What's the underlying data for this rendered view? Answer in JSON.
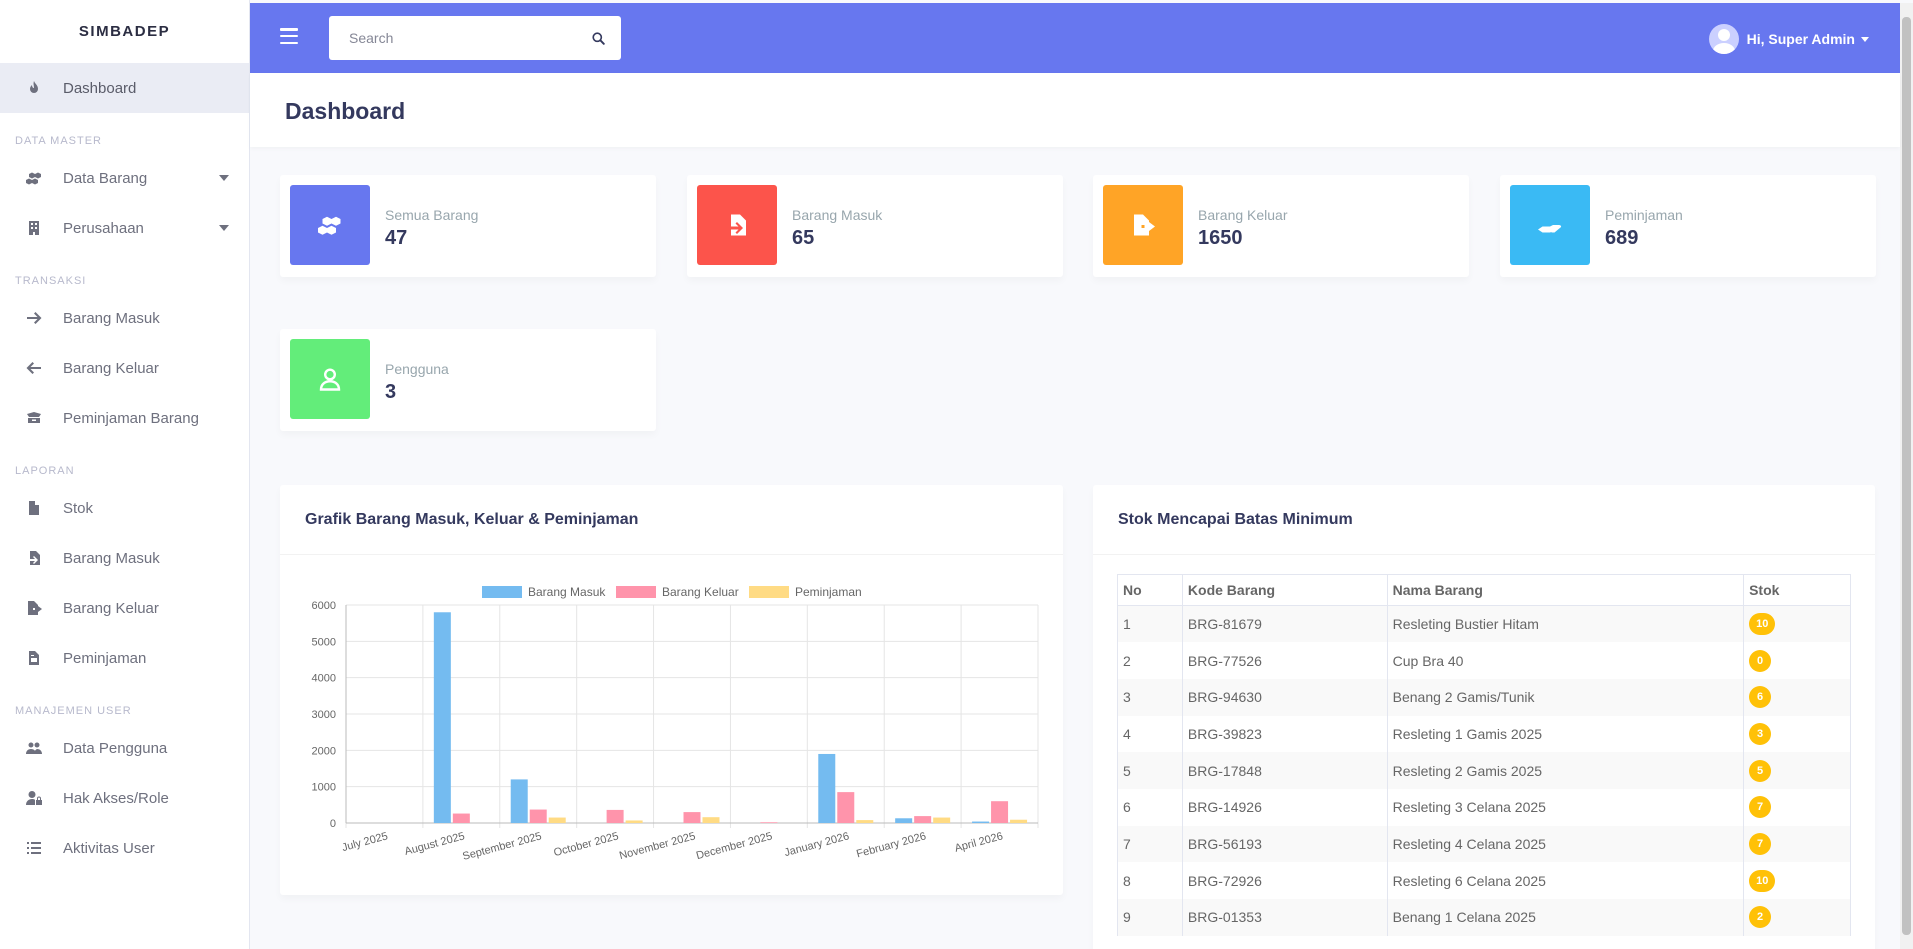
{
  "brand": "SIMBADEP",
  "sidebar": {
    "items": [
      {
        "label": "Dashboard",
        "icon": "fire-icon",
        "active": true
      },
      {
        "section": "DATA MASTER"
      },
      {
        "label": "Data Barang",
        "icon": "cubes-icon",
        "caret": true
      },
      {
        "label": "Perusahaan",
        "icon": "building-icon",
        "caret": true
      },
      {
        "section": "TRANSAKSI"
      },
      {
        "label": "Barang Masuk",
        "icon": "arrow-right-icon"
      },
      {
        "label": "Barang Keluar",
        "icon": "arrow-left-icon"
      },
      {
        "label": "Peminjaman Barang",
        "icon": "box-open-icon"
      },
      {
        "section": "LAPORAN"
      },
      {
        "label": "Stok",
        "icon": "file-icon"
      },
      {
        "label": "Barang Masuk",
        "icon": "file-import-icon"
      },
      {
        "label": "Barang Keluar",
        "icon": "file-export-icon"
      },
      {
        "label": "Peminjaman",
        "icon": "file-invoice-icon"
      },
      {
        "section": "MANAJEMEN USER"
      },
      {
        "label": "Data Pengguna",
        "icon": "users-icon"
      },
      {
        "label": "Hak Akses/Role",
        "icon": "user-lock-icon"
      },
      {
        "label": "Aktivitas User",
        "icon": "list-icon"
      }
    ]
  },
  "topbar": {
    "search_placeholder": "Search",
    "user_greeting": "Hi, Super Admin"
  },
  "page_title": "Dashboard",
  "stats": [
    {
      "title": "Semua Barang",
      "value": "47",
      "color": "#6777ef",
      "icon": "cubes-icon"
    },
    {
      "title": "Barang Masuk",
      "value": "65",
      "color": "#fc544b",
      "icon": "file-import-icon"
    },
    {
      "title": "Barang Keluar",
      "value": "1650",
      "color": "#ffa426",
      "icon": "file-export-icon"
    },
    {
      "title": "Peminjaman",
      "value": "689",
      "color": "#3abaf4",
      "icon": "hand-holding-icon"
    },
    {
      "title": "Pengguna",
      "value": "3",
      "color": "#63ed7a",
      "icon": "user-icon"
    }
  ],
  "chart_card_title": "Grafik Barang Masuk, Keluar & Peminjaman",
  "chart_data": {
    "type": "bar",
    "categories": [
      "July 2025",
      "August 2025",
      "September 2025",
      "October 2025",
      "November 2025",
      "December 2025",
      "January 2026",
      "February 2026",
      "April 2026"
    ],
    "series": [
      {
        "name": "Barang Masuk",
        "color": "#74bbf0",
        "values": [
          0,
          5800,
          1200,
          0,
          0,
          0,
          1900,
          130,
          40
        ]
      },
      {
        "name": "Barang Keluar",
        "color": "#ff94ab",
        "values": [
          0,
          260,
          370,
          360,
          300,
          20,
          850,
          190,
          600
        ]
      },
      {
        "name": "Peminjaman",
        "color": "#ffdb84",
        "values": [
          0,
          0,
          150,
          70,
          160,
          0,
          80,
          150,
          90
        ]
      }
    ],
    "ylim": [
      0,
      6000
    ],
    "yticks": [
      0,
      1000,
      2000,
      3000,
      4000,
      5000,
      6000
    ],
    "legend": "top",
    "grid": true
  },
  "table_card_title": "Stok Mencapai Batas Minimum",
  "table": {
    "headers": [
      "No",
      "Kode Barang",
      "Nama Barang",
      "Stok"
    ],
    "rows": [
      [
        "1",
        "BRG-81679",
        "Resleting Bustier Hitam",
        "10"
      ],
      [
        "2",
        "BRG-77526",
        "Cup Bra 40",
        "0"
      ],
      [
        "3",
        "BRG-94630",
        "Benang 2 Gamis/Tunik",
        "6"
      ],
      [
        "4",
        "BRG-39823",
        "Resleting 1 Gamis 2025",
        "3"
      ],
      [
        "5",
        "BRG-17848",
        "Resleting 2 Gamis 2025",
        "5"
      ],
      [
        "6",
        "BRG-14926",
        "Resleting 3 Celana 2025",
        "7"
      ],
      [
        "7",
        "BRG-56193",
        "Resleting 4 Celana 2025",
        "7"
      ],
      [
        "8",
        "BRG-72926",
        "Resleting 6 Celana 2025",
        "10"
      ],
      [
        "9",
        "BRG-01353",
        "Benang 1 Celana 2025",
        "2"
      ]
    ]
  }
}
